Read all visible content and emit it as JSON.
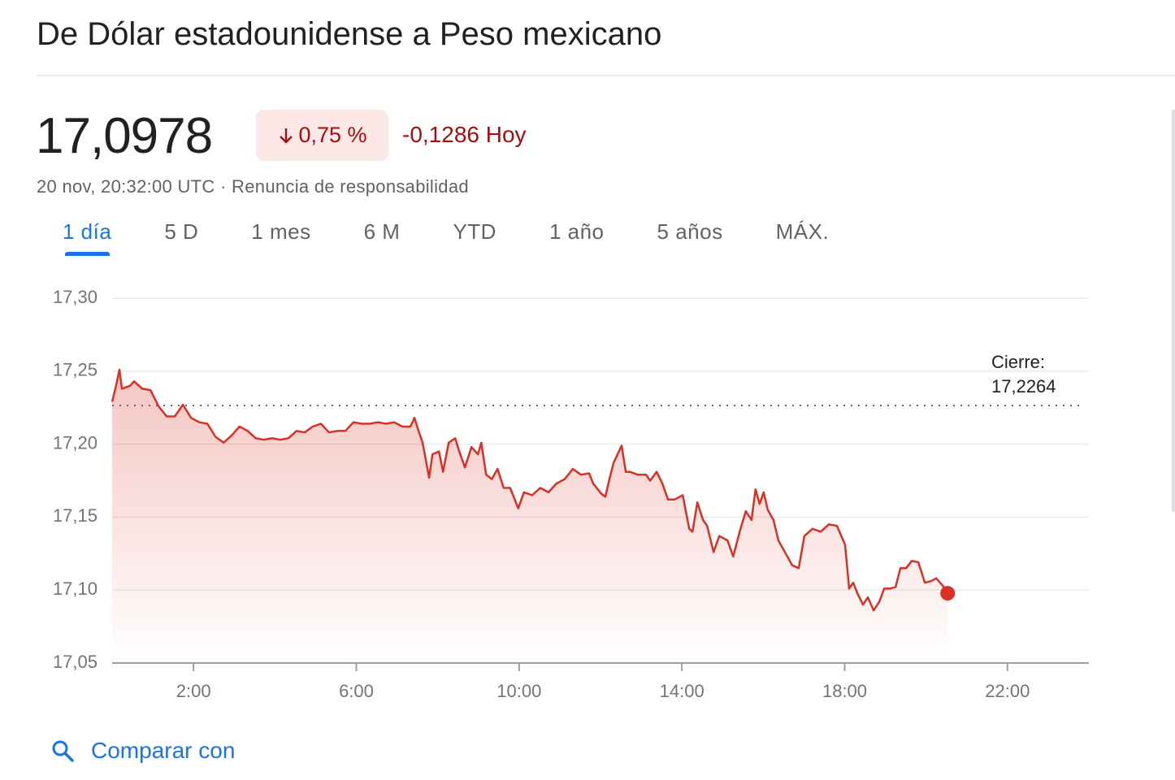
{
  "header": {
    "title": "De Dólar estadounidense a Peso mexicano",
    "price": "17,0978",
    "change_percent": "0,75 %",
    "change_abs": "-0,1286 Hoy",
    "subline": "20 nov, 20:32:00 UTC · Renuncia de responsabilidad"
  },
  "tabs": [
    "1 día",
    "5 D",
    "1 mes",
    "6 M",
    "YTD",
    "1 año",
    "5 años",
    "MÁX."
  ],
  "selected_tab": 0,
  "chart_data": {
    "type": "line",
    "color": "#d93025",
    "x": [
      0,
      0.08,
      0.18,
      0.24,
      0.44,
      0.54,
      0.74,
      0.94,
      1.14,
      1.34,
      1.54,
      1.74,
      1.94,
      2.14,
      2.34,
      2.54,
      2.74,
      2.94,
      3.13,
      3.33,
      3.53,
      3.73,
      3.93,
      4.13,
      4.33,
      4.53,
      4.73,
      4.93,
      5.13,
      5.33,
      5.53,
      5.73,
      5.93,
      6.13,
      6.33,
      6.53,
      6.73,
      6.93,
      7.13,
      7.33,
      7.43,
      7.53,
      7.63,
      7.79,
      7.87,
      8.03,
      8.13,
      8.27,
      8.43,
      8.53,
      8.67,
      8.83,
      8.99,
      9.07,
      9.19,
      9.33,
      9.47,
      9.62,
      9.78,
      9.98,
      10.12,
      10.32,
      10.52,
      10.72,
      10.92,
      11.12,
      11.32,
      11.52,
      11.72,
      11.82,
      12.02,
      12.12,
      12.22,
      12.32,
      12.42,
      12.52,
      12.62,
      12.72,
      12.92,
      13.12,
      13.22,
      13.38,
      13.52,
      13.66,
      13.82,
      14.02,
      14.18,
      14.26,
      14.38,
      14.52,
      14.62,
      14.78,
      14.92,
      15.12,
      15.26,
      15.42,
      15.57,
      15.71,
      15.81,
      15.91,
      16.01,
      16.11,
      16.25,
      16.37,
      16.51,
      16.71,
      16.87,
      17.01,
      17.21,
      17.41,
      17.61,
      17.81,
      18.01,
      18.11,
      18.21,
      18.31,
      18.45,
      18.57,
      18.71,
      18.85,
      18.97,
      19.11,
      19.25,
      19.37,
      19.51,
      19.65,
      19.81,
      19.97,
      20.11,
      20.25,
      20.41,
      20.53
    ],
    "values": [
      17.229,
      17.238,
      17.251,
      17.238,
      17.24,
      17.243,
      17.238,
      17.237,
      17.226,
      17.219,
      17.219,
      17.227,
      17.218,
      17.215,
      17.214,
      17.205,
      17.201,
      17.206,
      17.212,
      17.209,
      17.204,
      17.203,
      17.204,
      17.203,
      17.204,
      17.209,
      17.208,
      17.212,
      17.214,
      17.208,
      17.209,
      17.209,
      17.215,
      17.214,
      17.214,
      17.215,
      17.214,
      17.215,
      17.212,
      17.212,
      17.218,
      17.209,
      17.201,
      17.177,
      17.193,
      17.195,
      17.181,
      17.201,
      17.204,
      17.195,
      17.184,
      17.198,
      17.193,
      17.201,
      17.179,
      17.176,
      17.183,
      17.17,
      17.17,
      17.156,
      17.167,
      17.165,
      17.17,
      17.167,
      17.173,
      17.176,
      17.183,
      17.179,
      17.18,
      17.173,
      17.166,
      17.164,
      17.176,
      17.187,
      17.193,
      17.199,
      17.181,
      17.181,
      17.179,
      17.179,
      17.175,
      17.181,
      17.173,
      17.162,
      17.162,
      17.165,
      17.142,
      17.14,
      17.16,
      17.148,
      17.144,
      17.126,
      17.137,
      17.134,
      17.123,
      17.14,
      17.154,
      17.148,
      17.169,
      17.159,
      17.167,
      17.155,
      17.148,
      17.134,
      17.127,
      17.117,
      17.115,
      17.137,
      17.142,
      17.14,
      17.145,
      17.144,
      17.131,
      17.101,
      17.105,
      17.098,
      17.09,
      17.095,
      17.086,
      17.092,
      17.101,
      17.101,
      17.102,
      17.115,
      17.115,
      17.12,
      17.119,
      17.105,
      17.106,
      17.108,
      17.103,
      17.0978
    ],
    "xlim": [
      0,
      24
    ],
    "xticks": [
      {
        "value": 2,
        "label": "2:00"
      },
      {
        "value": 6,
        "label": "6:00"
      },
      {
        "value": 10,
        "label": "10:00"
      },
      {
        "value": 14,
        "label": "14:00"
      },
      {
        "value": 18,
        "label": "18:00"
      },
      {
        "value": 22,
        "label": "22:00"
      }
    ],
    "ylim": [
      17.05,
      17.3
    ],
    "yticks": [
      {
        "value": 17.05,
        "label": "17,05"
      },
      {
        "value": 17.1,
        "label": "17,10"
      },
      {
        "value": 17.15,
        "label": "17,15"
      },
      {
        "value": 17.2,
        "label": "17,20"
      },
      {
        "value": 17.25,
        "label": "17,25"
      },
      {
        "value": 17.3,
        "label": "17,30"
      }
    ],
    "grid": true,
    "reference_line": {
      "label": "Cierre:",
      "value": 17.2264,
      "value_label": "17,2264"
    }
  },
  "compare_link": "Comparar con"
}
